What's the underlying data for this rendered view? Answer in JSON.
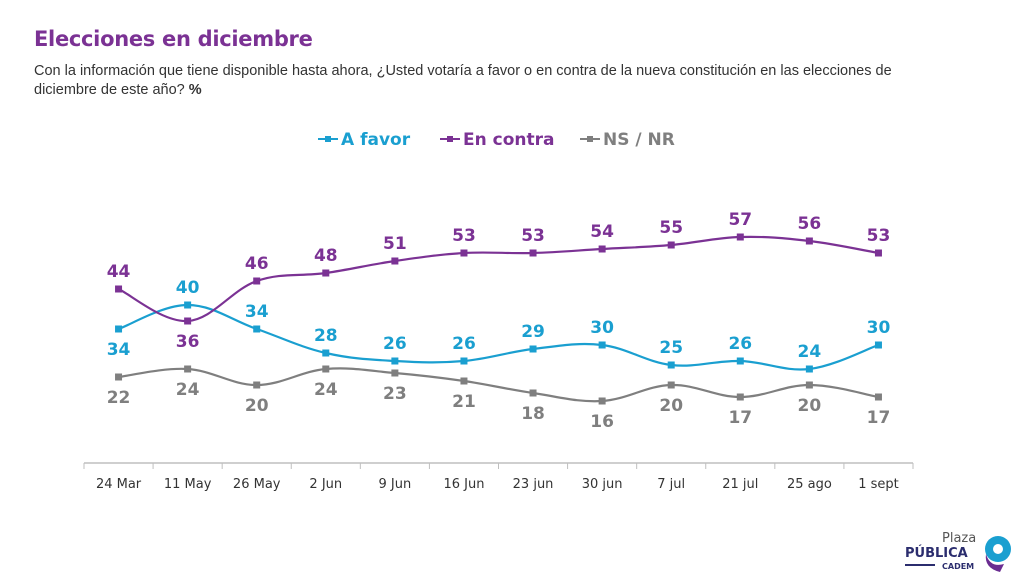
{
  "title": "Elecciones en diciembre",
  "subtitle": "Con la información que tiene disponible hasta ahora, ¿Usted votaría a favor o en contra de la nueva constitución en las elecciones de diciembre de este año?",
  "subtitle_unit": "%",
  "chart_data": {
    "type": "line",
    "title": "",
    "xlabel": "",
    "ylabel": "",
    "ylim": [
      0,
      70
    ],
    "grid": false,
    "legend_position": "top-center",
    "categories": [
      "24 Mar",
      "11 May",
      "26 May",
      "2 Jun",
      "9 Jun",
      "16 Jun",
      "23 jun",
      "30 jun",
      "7 jul",
      "21 jul",
      "25 ago",
      "1 sept"
    ],
    "series": [
      {
        "name": "A favor",
        "color": "#1A9FD0",
        "values": [
          34,
          40,
          34,
          28,
          26,
          26,
          29,
          30,
          25,
          26,
          24,
          30
        ],
        "label_side": [
          "below",
          "above",
          "above",
          "above",
          "above",
          "above",
          "above",
          "above",
          "above",
          "above",
          "above",
          "above"
        ]
      },
      {
        "name": "En contra",
        "color": "#7B3294",
        "values": [
          44,
          36,
          46,
          48,
          51,
          53,
          53,
          54,
          55,
          57,
          56,
          53
        ],
        "label_side": [
          "above",
          "below",
          "above",
          "above",
          "above",
          "above",
          "above",
          "above",
          "above",
          "above",
          "above",
          "above"
        ]
      },
      {
        "name": "NS / NR",
        "color": "#7F7F7F",
        "values": [
          22,
          24,
          20,
          24,
          23,
          21,
          18,
          16,
          20,
          17,
          20,
          17
        ],
        "label_side": [
          "below",
          "below",
          "below",
          "below",
          "below",
          "below",
          "below",
          "below",
          "below",
          "below",
          "below",
          "below"
        ]
      }
    ]
  },
  "logo": {
    "line1": "Plaza",
    "line2": "PÚBLICA",
    "line3": "CADEM"
  }
}
